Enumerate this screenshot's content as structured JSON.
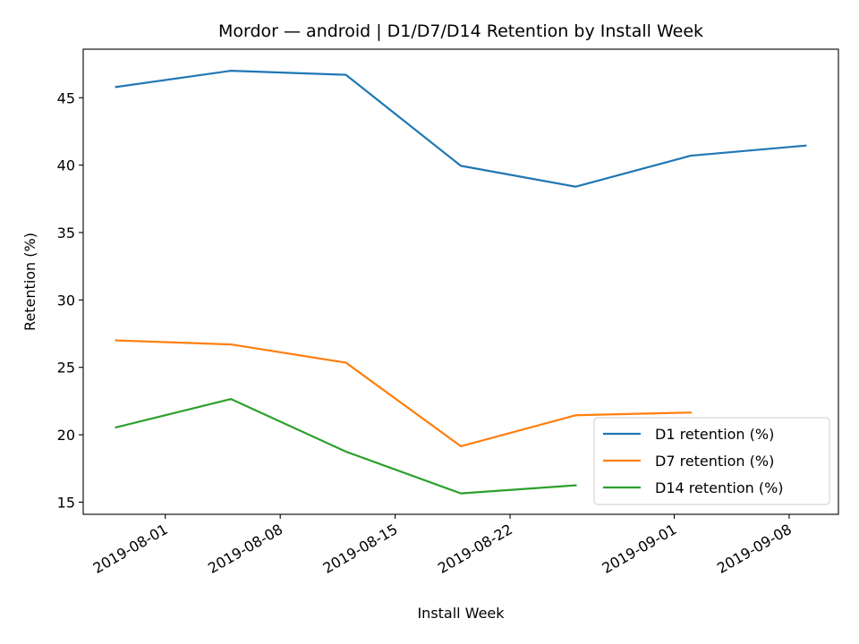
{
  "chart_data": {
    "type": "line",
    "title": "Mordor — android | D1/D7/D14 Retention by Install Week",
    "xlabel": "Install Week",
    "ylabel": "Retention (%)",
    "x_axis_type": "date",
    "xlim": [
      "2019-07-27",
      "2019-09-11"
    ],
    "ylim": [
      14.1,
      48.6
    ],
    "xticks": [
      "2019-08-01",
      "2019-08-08",
      "2019-08-15",
      "2019-08-22",
      "2019-09-01",
      "2019-09-08"
    ],
    "yticks": [
      15,
      20,
      25,
      30,
      35,
      40,
      45
    ],
    "grid": false,
    "legend_position": "lower right",
    "series": [
      {
        "name": "D1 retention (%)",
        "color": "#1f77b4",
        "x": [
          "2019-07-29",
          "2019-08-05",
          "2019-08-12",
          "2019-08-19",
          "2019-08-26",
          "2019-09-02",
          "2019-09-09"
        ],
        "values": [
          45.8,
          47.0,
          46.7,
          39.95,
          38.4,
          40.7,
          41.45
        ]
      },
      {
        "name": "D7 retention (%)",
        "color": "#ff7f0e",
        "x": [
          "2019-07-29",
          "2019-08-05",
          "2019-08-12",
          "2019-08-19",
          "2019-08-26",
          "2019-09-02"
        ],
        "values": [
          27.0,
          26.7,
          25.35,
          19.15,
          21.45,
          21.65
        ]
      },
      {
        "name": "D14 retention (%)",
        "color": "#2ca02c",
        "x": [
          "2019-07-29",
          "2019-08-05",
          "2019-08-12",
          "2019-08-19",
          "2019-08-26"
        ],
        "values": [
          20.55,
          22.65,
          18.75,
          15.65,
          16.25
        ]
      }
    ]
  }
}
